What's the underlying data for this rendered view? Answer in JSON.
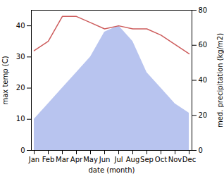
{
  "chart_data": {
    "type": "line",
    "categories": [
      "Jan",
      "Feb",
      "Mar",
      "Apr",
      "May",
      "Jun",
      "Jul",
      "Aug",
      "Sep",
      "Oct",
      "Nov",
      "Dec"
    ],
    "series": [
      {
        "type": "area",
        "color": "#b8c4ef",
        "values": [
          10,
          15,
          20,
          25,
          30,
          38,
          40,
          35,
          25,
          20,
          15,
          12
        ]
      },
      {
        "type": "line",
        "color": "#cd5c5c",
        "values": [
          32,
          35,
          43,
          43,
          41,
          39,
          40,
          39,
          39,
          37,
          34,
          31
        ]
      }
    ],
    "xlabel": "date (month)",
    "ylabel": "max temp (C)",
    "y2label": "med. precipitation (kg/m2)",
    "ylim": [
      0,
      45
    ],
    "yticks": [
      0,
      10,
      20,
      30,
      40
    ],
    "y2lim": [
      0,
      80
    ],
    "y2ticks": [
      0,
      20,
      40,
      60,
      80
    ]
  }
}
